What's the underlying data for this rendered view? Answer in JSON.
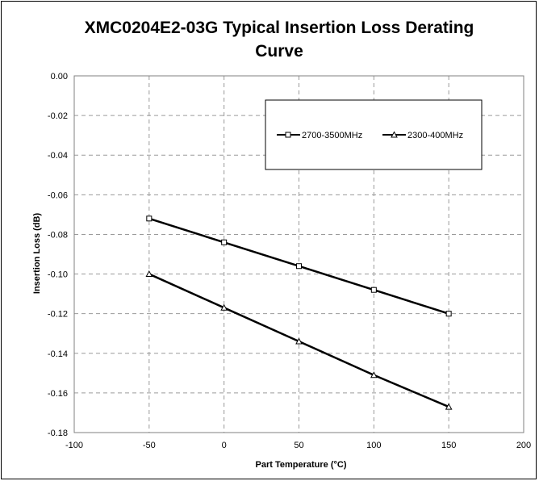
{
  "chart_data": {
    "type": "line",
    "title": "XMC0204E2-03G Typical Insertion Loss Derating Curve",
    "title_lines": [
      "XMC0204E2-03G Typical Insertion Loss Derating",
      "Curve"
    ],
    "xlabel": "Part Temperature (°C)",
    "ylabel": "Insertion Loss (dB)",
    "xlim": [
      -100,
      200
    ],
    "ylim": [
      -0.18,
      0.0
    ],
    "x_ticks": [
      -100,
      -50,
      0,
      50,
      100,
      150,
      200
    ],
    "y_ticks": [
      0.0,
      -0.02,
      -0.04,
      -0.06,
      -0.08,
      -0.1,
      -0.12,
      -0.14,
      -0.16,
      -0.18
    ],
    "x_tick_labels": [
      "-100",
      "-50",
      "0",
      "50",
      "100",
      "150",
      "200"
    ],
    "y_tick_labels": [
      "0.00",
      "-0.02",
      "-0.04",
      "-0.06",
      "-0.08",
      "-0.10",
      "-0.12",
      "-0.14",
      "-0.16",
      "-0.18"
    ],
    "grid": true,
    "grid_style": "dashed",
    "legend_placement": "top-right",
    "series": [
      {
        "name": "2700-3500MHz",
        "marker": "square",
        "color": "#000000",
        "x": [
          -50,
          0,
          50,
          100,
          150
        ],
        "y": [
          -0.072,
          -0.084,
          -0.096,
          -0.108,
          -0.12
        ]
      },
      {
        "name": "2300-400MHz",
        "marker": "triangle",
        "color": "#000000",
        "x": [
          -50,
          0,
          50,
          100,
          150
        ],
        "y": [
          -0.1,
          -0.117,
          -0.134,
          -0.151,
          -0.167
        ]
      }
    ]
  }
}
